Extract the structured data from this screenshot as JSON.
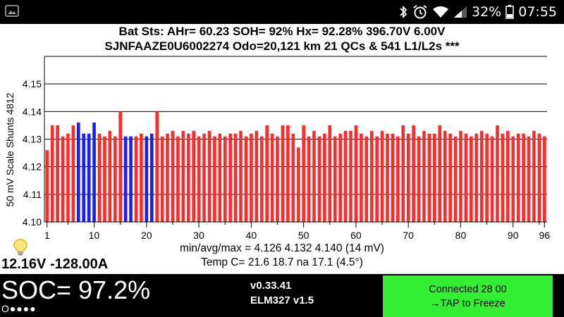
{
  "status_bar": {
    "battery_percent": "32%",
    "time": "07:55",
    "icons": [
      "gallery-icon",
      "bluetooth-icon",
      "alarm-icon",
      "wifi-icon",
      "signal-icon",
      "battery-icon"
    ]
  },
  "header": {
    "line1": "Bat Sts:  AHr= 60.23  SOH= 92%   Hx= 92.28%   396.70V 6.00V",
    "line2": "SJNFAAZE0U6002274 Odo=20,121 km  21 QCs  &  541 L1/L2s ***"
  },
  "chart_data": {
    "type": "bar",
    "ylabel": "50 mV Scale   Shunts 4812",
    "ylim": [
      4.1,
      4.16
    ],
    "y_ticks": [
      4.1,
      4.11,
      4.12,
      4.13,
      4.14,
      4.15
    ],
    "y_gridlines": [
      4.1,
      4.11,
      4.12,
      4.13,
      4.14,
      4.15,
      4.16
    ],
    "x_ticks": [
      1,
      10,
      20,
      30,
      40,
      50,
      60,
      70,
      80,
      90,
      96
    ],
    "x_range": [
      1,
      96
    ],
    "bar_color": "#ff2a2a",
    "shunt_color": "#1a1aff",
    "shunted_cells": [
      7,
      8,
      9,
      10,
      16,
      17,
      20,
      21
    ],
    "values": [
      4.126,
      4.135,
      4.135,
      4.131,
      4.132,
      4.135,
      4.136,
      4.132,
      4.132,
      4.136,
      4.132,
      4.131,
      4.133,
      4.131,
      4.14,
      4.131,
      4.131,
      4.131,
      4.132,
      4.131,
      4.132,
      4.14,
      4.131,
      4.132,
      4.133,
      4.131,
      4.133,
      4.132,
      4.133,
      4.131,
      4.132,
      4.133,
      4.131,
      4.132,
      4.131,
      4.132,
      4.132,
      4.133,
      4.131,
      4.132,
      4.133,
      4.131,
      4.135,
      4.132,
      4.131,
      4.135,
      4.135,
      4.132,
      4.127,
      4.135,
      4.131,
      4.133,
      4.131,
      4.132,
      4.135,
      4.131,
      4.132,
      4.133,
      4.133,
      4.135,
      4.132,
      4.131,
      4.133,
      4.131,
      4.133,
      4.132,
      4.132,
      4.131,
      4.135,
      4.132,
      4.135,
      4.131,
      4.133,
      4.132,
      4.132,
      4.135,
      4.133,
      4.132,
      4.131,
      4.133,
      4.132,
      4.131,
      4.132,
      4.133,
      4.132,
      4.131,
      4.135,
      4.132,
      4.133,
      4.131,
      4.132,
      4.132,
      4.131,
      4.133,
      4.132,
      4.131
    ]
  },
  "stats": {
    "minavgmax": "min/avg/max = 4.126 4.132 4.140  (14 mV)",
    "temp": "Temp C= 21.6  18.7  na  17.1  (4.5°)"
  },
  "battery_voltage": "12.16V -128.00A",
  "soc": "SOC= 97.2%",
  "dots": "O●●●●",
  "version": {
    "line1": "v0.33.41",
    "line2": "ELM327 v1.5"
  },
  "connect_button": {
    "line1": "Connected 28 00",
    "line2": "→TAP to Freeze",
    "color": "#33ee33"
  }
}
